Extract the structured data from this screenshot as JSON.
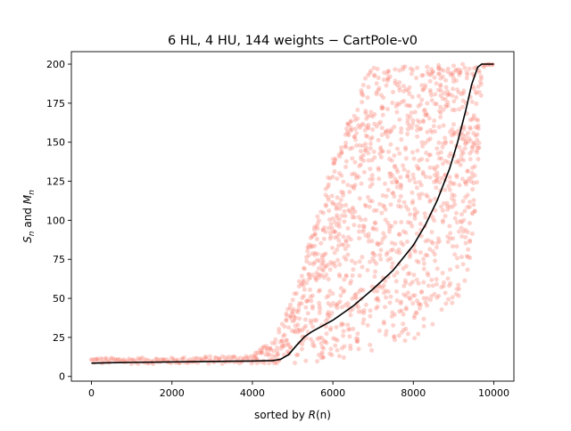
{
  "chart_data": {
    "type": "scatter",
    "title": "6 HL, 4 HU, 144 weights − CartPole-v0",
    "xlabel_prefix": "sorted by ",
    "xlabel_var": "R",
    "xlabel_suffix": "(n)",
    "ylabel_s": "S",
    "ylabel_and": " and ",
    "ylabel_m": "M",
    "ylabel_sub": "n",
    "xlim": [
      -500,
      10500
    ],
    "ylim": [
      -3,
      208
    ],
    "xticks": [
      0,
      2000,
      4000,
      6000,
      8000,
      10000
    ],
    "yticks": [
      0,
      25,
      50,
      75,
      100,
      125,
      150,
      175,
      200
    ],
    "grid": false,
    "legend": "none",
    "colors": {
      "scatter": "#fa8072",
      "mean_line": "#000000"
    },
    "mean_line": {
      "x": [
        0,
        500,
        1000,
        2000,
        3000,
        4000,
        4500,
        4700,
        4900,
        5100,
        5300,
        5500,
        6000,
        6500,
        7000,
        7500,
        8000,
        8300,
        8600,
        8900,
        9100,
        9300,
        9450,
        9600,
        9700,
        10000
      ],
      "y": [
        8.5,
        8.8,
        9.0,
        9.3,
        9.6,
        9.9,
        10.2,
        11.0,
        14.0,
        20.0,
        25.5,
        29.0,
        36.0,
        45.0,
        56.0,
        68.0,
        84.0,
        97.0,
        113.0,
        133.0,
        150.0,
        170.0,
        187.0,
        198.0,
        200.0,
        200.0
      ]
    },
    "spread": {
      "x": [
        0,
        2000,
        4000,
        4500,
        5000,
        5500,
        6000,
        6500,
        7000,
        7500,
        8000,
        8500,
        9000,
        9300,
        9600,
        9700,
        10000
      ],
      "lower": [
        8,
        8,
        8,
        8,
        8,
        9,
        10,
        12,
        15,
        19,
        24,
        31,
        43,
        58,
        90,
        198,
        200
      ],
      "upper": [
        12,
        12,
        14,
        23,
        50,
        95,
        140,
        175,
        200,
        200,
        200,
        200,
        200,
        200,
        200,
        200,
        200
      ]
    }
  }
}
